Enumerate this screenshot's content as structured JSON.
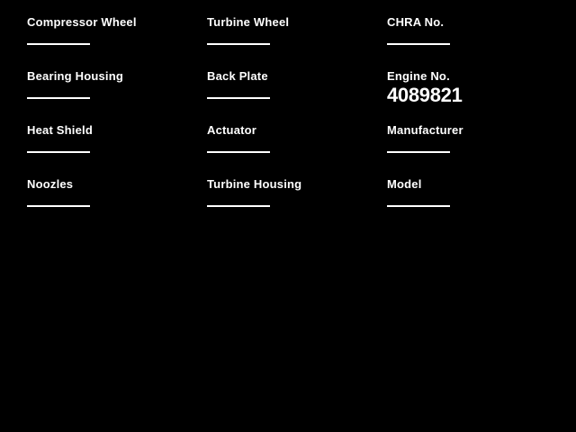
{
  "colors": {
    "background": "#000000",
    "text": "#ffffff",
    "underline": "#ffffff"
  },
  "form": {
    "fields": [
      {
        "label": "Compressor Wheel",
        "value": ""
      },
      {
        "label": "Turbine Wheel",
        "value": ""
      },
      {
        "label": "CHRA No.",
        "value": ""
      },
      {
        "label": "Bearing Housing",
        "value": ""
      },
      {
        "label": "Back Plate",
        "value": ""
      },
      {
        "label": "Engine No.",
        "value": "4089821"
      },
      {
        "label": "Heat Shield",
        "value": ""
      },
      {
        "label": "Actuator",
        "value": ""
      },
      {
        "label": "Manufacturer",
        "value": ""
      },
      {
        "label": "Noozles",
        "value": ""
      },
      {
        "label": "Turbine Housing",
        "value": ""
      },
      {
        "label": "Model",
        "value": ""
      }
    ]
  }
}
